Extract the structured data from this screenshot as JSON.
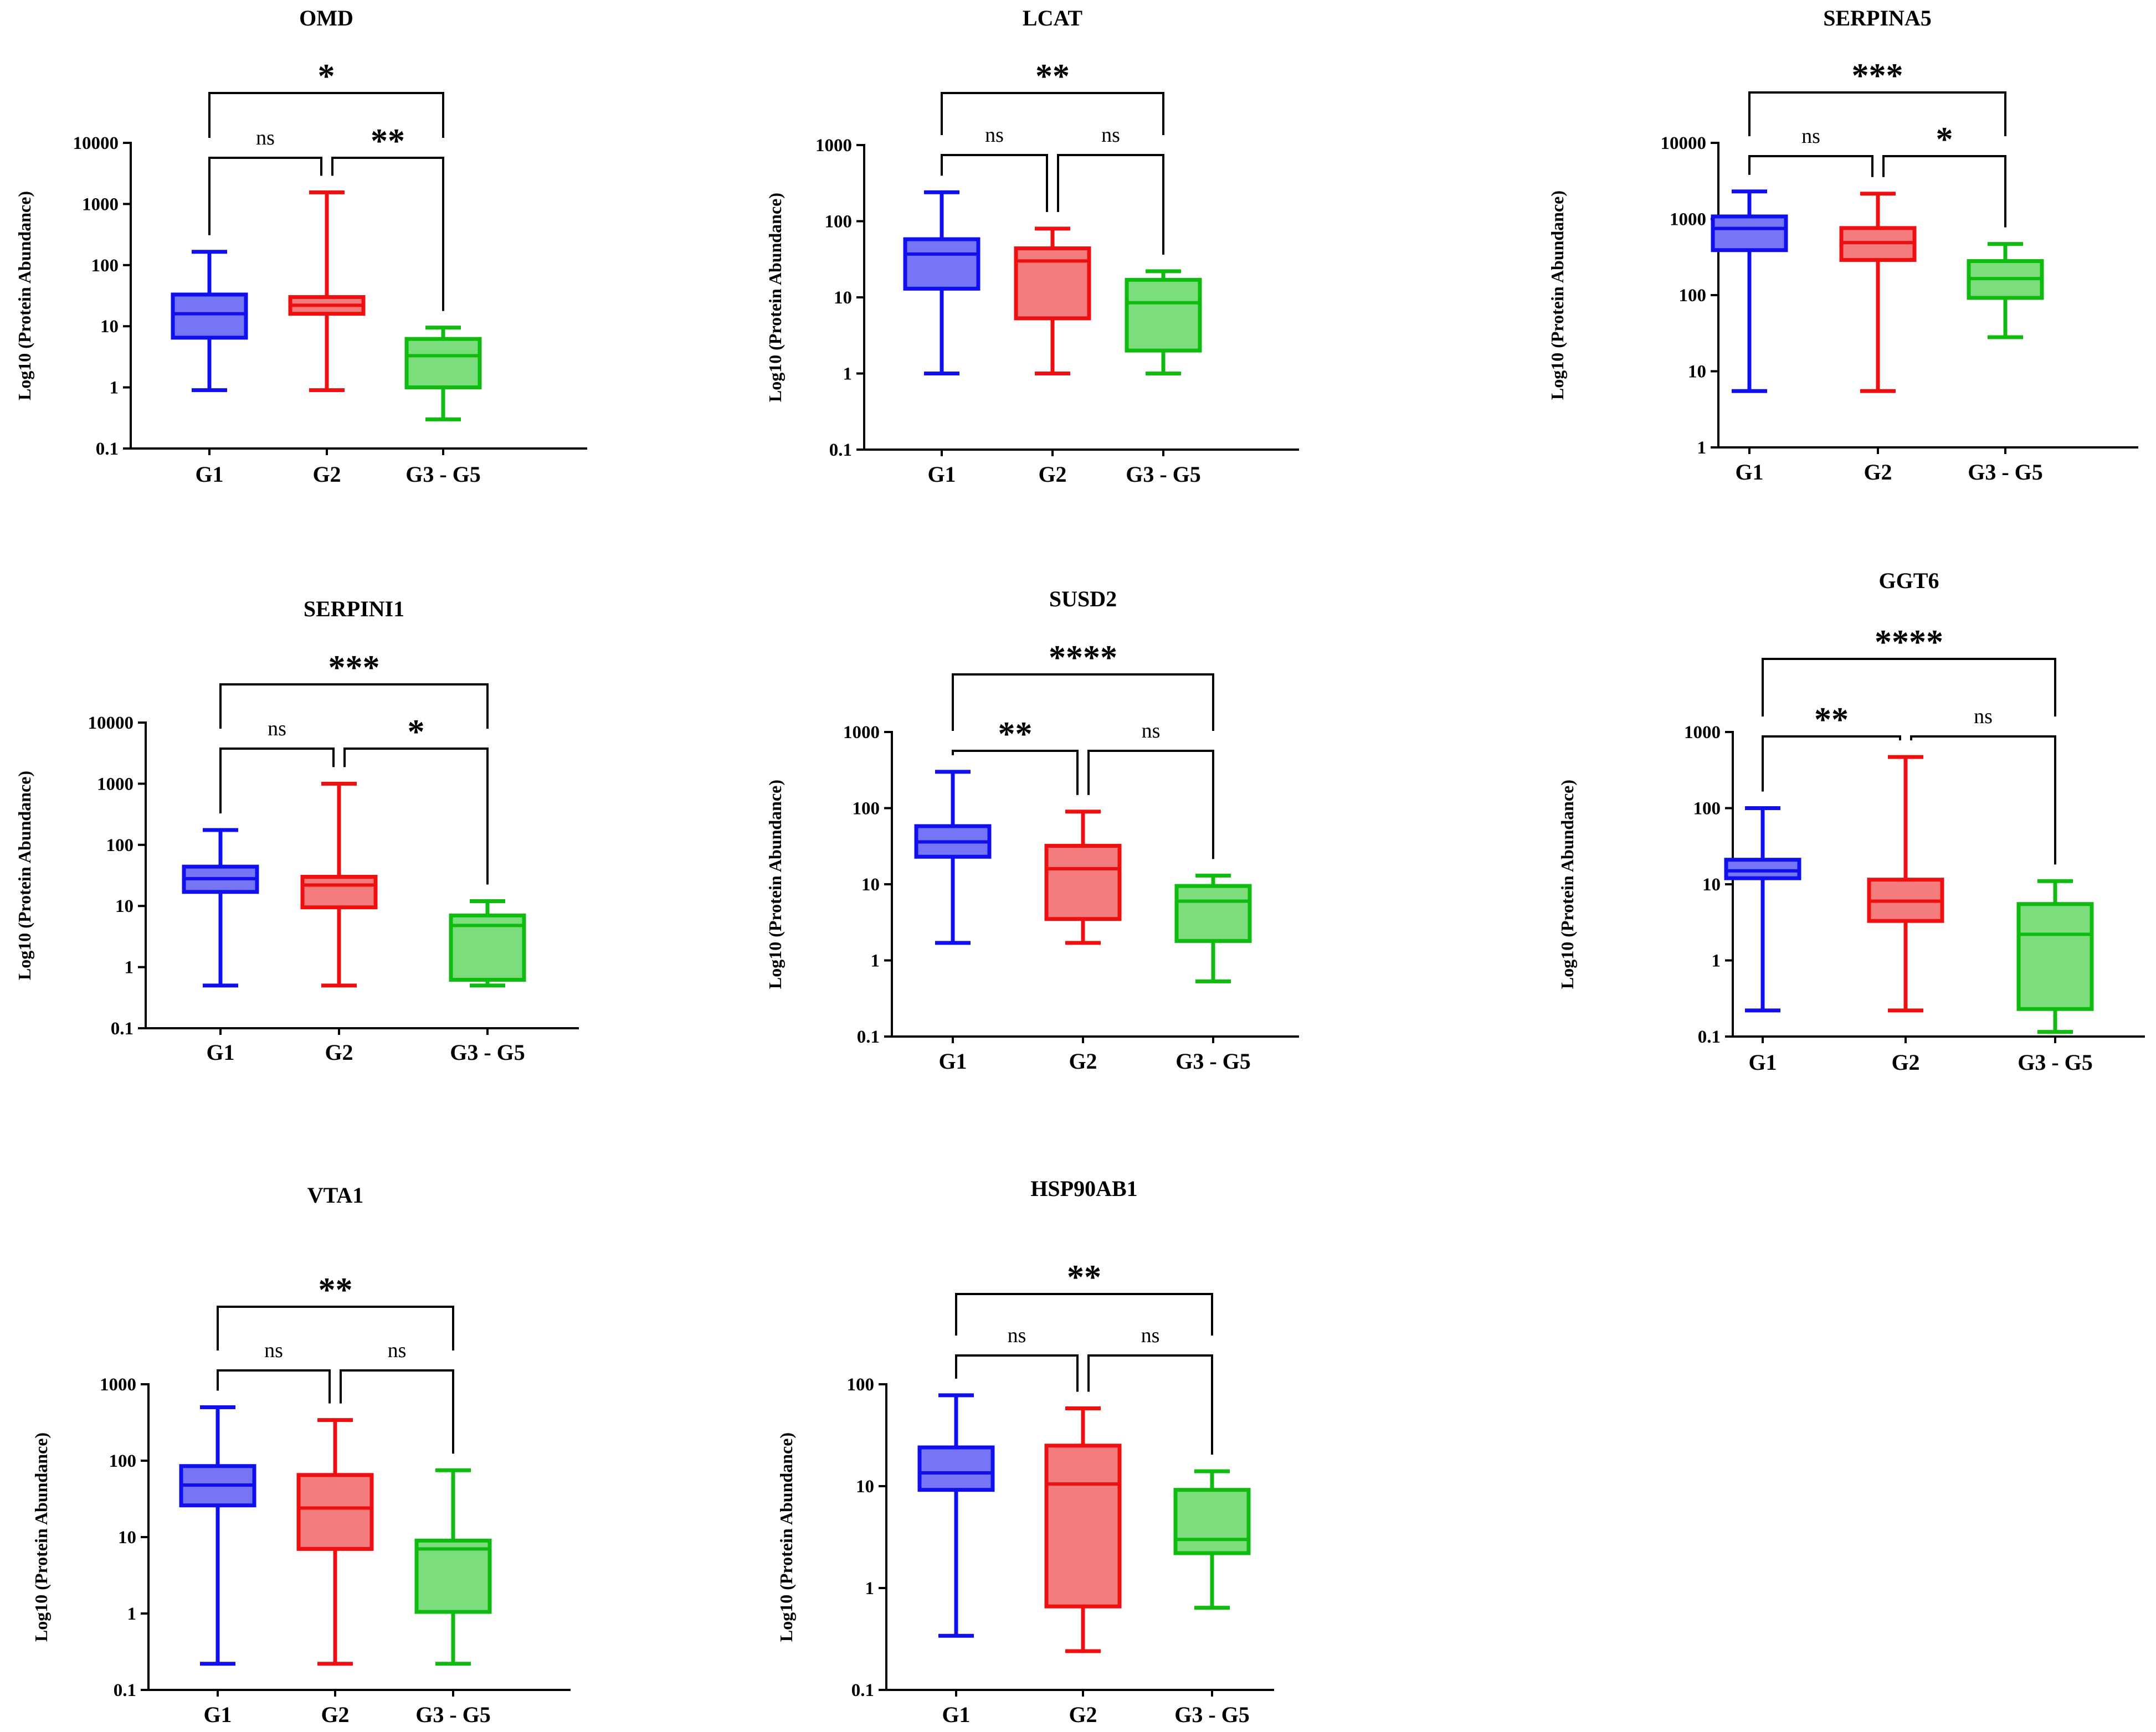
{
  "chart_data": [
    {
      "type": "box",
      "title": "OMD",
      "ylabel": "Log10 (Protein Abundance)",
      "yscale": "log",
      "ylim": [
        0.1,
        10000
      ],
      "yticks": [
        "0.1",
        "1",
        "10",
        "100",
        "1000",
        "10000"
      ],
      "categories": [
        "G1",
        "G2",
        "G3 - G5"
      ],
      "colors": [
        "#1010ee",
        "#ee1010",
        "#10bb10"
      ],
      "boxes": [
        {
          "min": 0.9,
          "q1": 6.5,
          "median": 16,
          "q3": 33,
          "max": 165
        },
        {
          "min": 0.9,
          "q1": 16,
          "median": 22,
          "q3": 30,
          "max": 1550
        },
        {
          "min": 0.3,
          "q1": 1.0,
          "median": 3.3,
          "q3": 6.2,
          "max": 9.5
        }
      ],
      "comparisons": [
        {
          "from": "G1",
          "to": "G2",
          "label": "ns"
        },
        {
          "from": "G2",
          "to": "G3 - G5",
          "label": "**"
        },
        {
          "from": "G1",
          "to": "G3 - G5",
          "label": "*"
        }
      ]
    },
    {
      "type": "box",
      "title": "LCAT",
      "ylabel": "Log10 (Protein Abundance)",
      "yscale": "log",
      "ylim": [
        0.1,
        1000
      ],
      "yticks": [
        "0.1",
        "1",
        "10",
        "100",
        "1000"
      ],
      "categories": [
        "G1",
        "G2",
        "G3 - G5"
      ],
      "colors": [
        "#1010ee",
        "#ee1010",
        "#10bb10"
      ],
      "boxes": [
        {
          "min": 1.0,
          "q1": 13,
          "median": 37,
          "q3": 58,
          "max": 240
        },
        {
          "min": 1.0,
          "q1": 5.3,
          "median": 30,
          "q3": 44,
          "max": 80
        },
        {
          "min": 1.0,
          "q1": 2.0,
          "median": 8.5,
          "q3": 17,
          "max": 22
        }
      ],
      "comparisons": [
        {
          "from": "G1",
          "to": "G2",
          "label": "ns"
        },
        {
          "from": "G2",
          "to": "G3 - G5",
          "label": "ns"
        },
        {
          "from": "G1",
          "to": "G3 - G5",
          "label": "**"
        }
      ]
    },
    {
      "type": "box",
      "title": "SERPINA5",
      "ylabel": "Log10 (Protein Abundance)",
      "yscale": "log",
      "ylim": [
        1,
        10000
      ],
      "yticks": [
        "1",
        "10",
        "100",
        "1000",
        "10000"
      ],
      "categories": [
        "G1",
        "G2",
        "G3 - G5"
      ],
      "colors": [
        "#1010ee",
        "#ee1010",
        "#10bb10"
      ],
      "boxes": [
        {
          "min": 5.5,
          "q1": 390,
          "median": 750,
          "q3": 1080,
          "max": 2300
        },
        {
          "min": 5.5,
          "q1": 290,
          "median": 490,
          "q3": 760,
          "max": 2150
        },
        {
          "min": 28,
          "q1": 92,
          "median": 165,
          "q3": 280,
          "max": 470
        }
      ],
      "comparisons": [
        {
          "from": "G1",
          "to": "G2",
          "label": "ns"
        },
        {
          "from": "G2",
          "to": "G3 - G5",
          "label": "*"
        },
        {
          "from": "G1",
          "to": "G3 - G5",
          "label": "***"
        }
      ]
    },
    {
      "type": "box",
      "title": "SERPINI1",
      "ylabel": "Log10 (Protein Abundance)",
      "yscale": "log",
      "ylim": [
        0.1,
        10000
      ],
      "yticks": [
        "0.1",
        "1",
        "10",
        "100",
        "1000",
        "10000"
      ],
      "categories": [
        "G1",
        "G2",
        "G3 - G5"
      ],
      "colors": [
        "#1010ee",
        "#ee1010",
        "#10bb10"
      ],
      "boxes": [
        {
          "min": 0.5,
          "q1": 17,
          "median": 28,
          "q3": 44,
          "max": 175
        },
        {
          "min": 0.5,
          "q1": 9.5,
          "median": 22,
          "q3": 30,
          "max": 1000
        },
        {
          "min": 0.5,
          "q1": 0.62,
          "median": 4.8,
          "q3": 7.0,
          "max": 12
        }
      ],
      "comparisons": [
        {
          "from": "G1",
          "to": "G2",
          "label": "ns"
        },
        {
          "from": "G2",
          "to": "G3 - G5",
          "label": "*"
        },
        {
          "from": "G1",
          "to": "G3 - G5",
          "label": "***"
        }
      ]
    },
    {
      "type": "box",
      "title": "SUSD2",
      "ylabel": "Log10 (Protein Abundance)",
      "yscale": "log",
      "ylim": [
        0.1,
        1000
      ],
      "yticks": [
        "0.1",
        "1",
        "10",
        "100",
        "1000"
      ],
      "categories": [
        "G1",
        "G2",
        "G3 - G5"
      ],
      "colors": [
        "#1010ee",
        "#ee1010",
        "#10bb10"
      ],
      "boxes": [
        {
          "min": 1.7,
          "q1": 23,
          "median": 36,
          "q3": 58,
          "max": 300
        },
        {
          "min": 1.7,
          "q1": 3.5,
          "median": 16,
          "q3": 32,
          "max": 90
        },
        {
          "min": 0.53,
          "q1": 1.8,
          "median": 6.0,
          "q3": 9.5,
          "max": 13
        }
      ],
      "comparisons": [
        {
          "from": "G1",
          "to": "G2",
          "label": "**"
        },
        {
          "from": "G2",
          "to": "G3 - G5",
          "label": "ns"
        },
        {
          "from": "G1",
          "to": "G3 - G5",
          "label": "****"
        }
      ]
    },
    {
      "type": "box",
      "title": "GGT6",
      "ylabel": "Log10 (Protein Abundance)",
      "yscale": "log",
      "ylim": [
        0.1,
        1000
      ],
      "yticks": [
        "0.1",
        "1",
        "10",
        "100",
        "1000"
      ],
      "categories": [
        "G1",
        "G2",
        "G3 - G5"
      ],
      "colors": [
        "#1010ee",
        "#ee1010",
        "#10bb10"
      ],
      "boxes": [
        {
          "min": 0.22,
          "q1": 12,
          "median": 15,
          "q3": 21,
          "max": 100
        },
        {
          "min": 0.22,
          "q1": 3.3,
          "median": 6.0,
          "q3": 11.5,
          "max": 470
        },
        {
          "min": 0.115,
          "q1": 0.23,
          "median": 2.2,
          "q3": 5.5,
          "max": 11
        }
      ],
      "comparisons": [
        {
          "from": "G1",
          "to": "G2",
          "label": "**"
        },
        {
          "from": "G2",
          "to": "G3 - G5",
          "label": "ns"
        },
        {
          "from": "G1",
          "to": "G3 - G5",
          "label": "****"
        }
      ]
    },
    {
      "type": "box",
      "title": "VTA1",
      "ylabel": "Log10 (Protein Abundance)",
      "yscale": "log",
      "ylim": [
        0.1,
        1000
      ],
      "yticks": [
        "0.1",
        "1",
        "10",
        "100",
        "1000"
      ],
      "categories": [
        "G1",
        "G2",
        "G3 - G5"
      ],
      "colors": [
        "#1010ee",
        "#ee1010",
        "#10bb10"
      ],
      "boxes": [
        {
          "min": 0.22,
          "q1": 26,
          "median": 48,
          "q3": 85,
          "max": 500
        },
        {
          "min": 0.22,
          "q1": 7.0,
          "median": 24,
          "q3": 65,
          "max": 340
        },
        {
          "min": 0.22,
          "q1": 1.05,
          "median": 7.0,
          "q3": 9.0,
          "max": 75
        }
      ],
      "comparisons": [
        {
          "from": "G1",
          "to": "G2",
          "label": "ns"
        },
        {
          "from": "G2",
          "to": "G3 - G5",
          "label": "ns"
        },
        {
          "from": "G1",
          "to": "G3 - G5",
          "label": "**"
        }
      ]
    },
    {
      "type": "box",
      "title": "HSP90AB1",
      "ylabel": "Log10 (Protein Abundance)",
      "yscale": "log",
      "ylim": [
        0.1,
        100
      ],
      "yticks": [
        "0.1",
        "1",
        "10",
        "100"
      ],
      "categories": [
        "G1",
        "G2",
        "G3 - G5"
      ],
      "colors": [
        "#1010ee",
        "#ee1010",
        "#10bb10"
      ],
      "boxes": [
        {
          "min": 0.34,
          "q1": 9.2,
          "median": 13.5,
          "q3": 24,
          "max": 78
        },
        {
          "min": 0.24,
          "q1": 0.66,
          "median": 10.5,
          "q3": 25,
          "max": 58
        },
        {
          "min": 0.64,
          "q1": 2.2,
          "median": 3.0,
          "q3": 9.2,
          "max": 14
        }
      ],
      "comparisons": [
        {
          "from": "G1",
          "to": "G2",
          "label": "ns"
        },
        {
          "from": "G2",
          "to": "G3 - G5",
          "label": "ns"
        },
        {
          "from": "G1",
          "to": "G3 - G5",
          "label": "**"
        }
      ]
    }
  ]
}
